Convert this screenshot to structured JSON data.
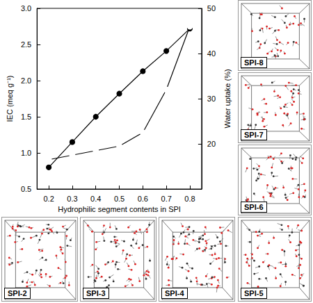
{
  "chart_data": {
    "type": "line",
    "x_label": "Hydrophilic segment contents in SPI",
    "y_label": "IEC (meq g⁻¹)",
    "y2_label": "Water uptake (%)",
    "x": [
      0.2,
      0.3,
      0.4,
      0.5,
      0.6,
      0.7,
      0.8
    ],
    "series": [
      {
        "color": "#000000",
        "marker": "circle",
        "values": [
          0.8,
          1.15,
          1.5,
          1.82,
          2.13,
          2.41,
          2.72
        ]
      },
      {
        "color": "#000000",
        "marker": "open_circle",
        "axis": "y2",
        "values": [
          16.5,
          17.5,
          18.5,
          19.5,
          22.5,
          32.0,
          46.0
        ]
      }
    ],
    "xlim": [
      0.15,
      0.85
    ],
    "xticks": [
      0.2,
      0.3,
      0.4,
      0.5,
      0.6,
      0.7,
      0.8
    ],
    "ylim": [
      0.5,
      3.0
    ],
    "yticks": [
      0.5,
      {
        "value": 1.0,
        "label": "1.0"
      },
      1.5,
      {
        "value": 2.0,
        "label": "2.0"
      },
      2.5,
      {
        "value": 3.0,
        "label": "3.0"
      }
    ],
    "y2lim": [
      10,
      50
    ],
    "y2ticks": [
      20,
      30,
      40,
      50
    ],
    "grid": false
  },
  "panels": [
    {
      "label": "SPI-8"
    },
    {
      "label": "SPI-7"
    },
    {
      "label": "SPI-6"
    },
    {
      "label": "SPI-5"
    },
    {
      "label": "SPI-2"
    },
    {
      "label": "SPI-3"
    },
    {
      "label": "SPI-4"
    }
  ]
}
